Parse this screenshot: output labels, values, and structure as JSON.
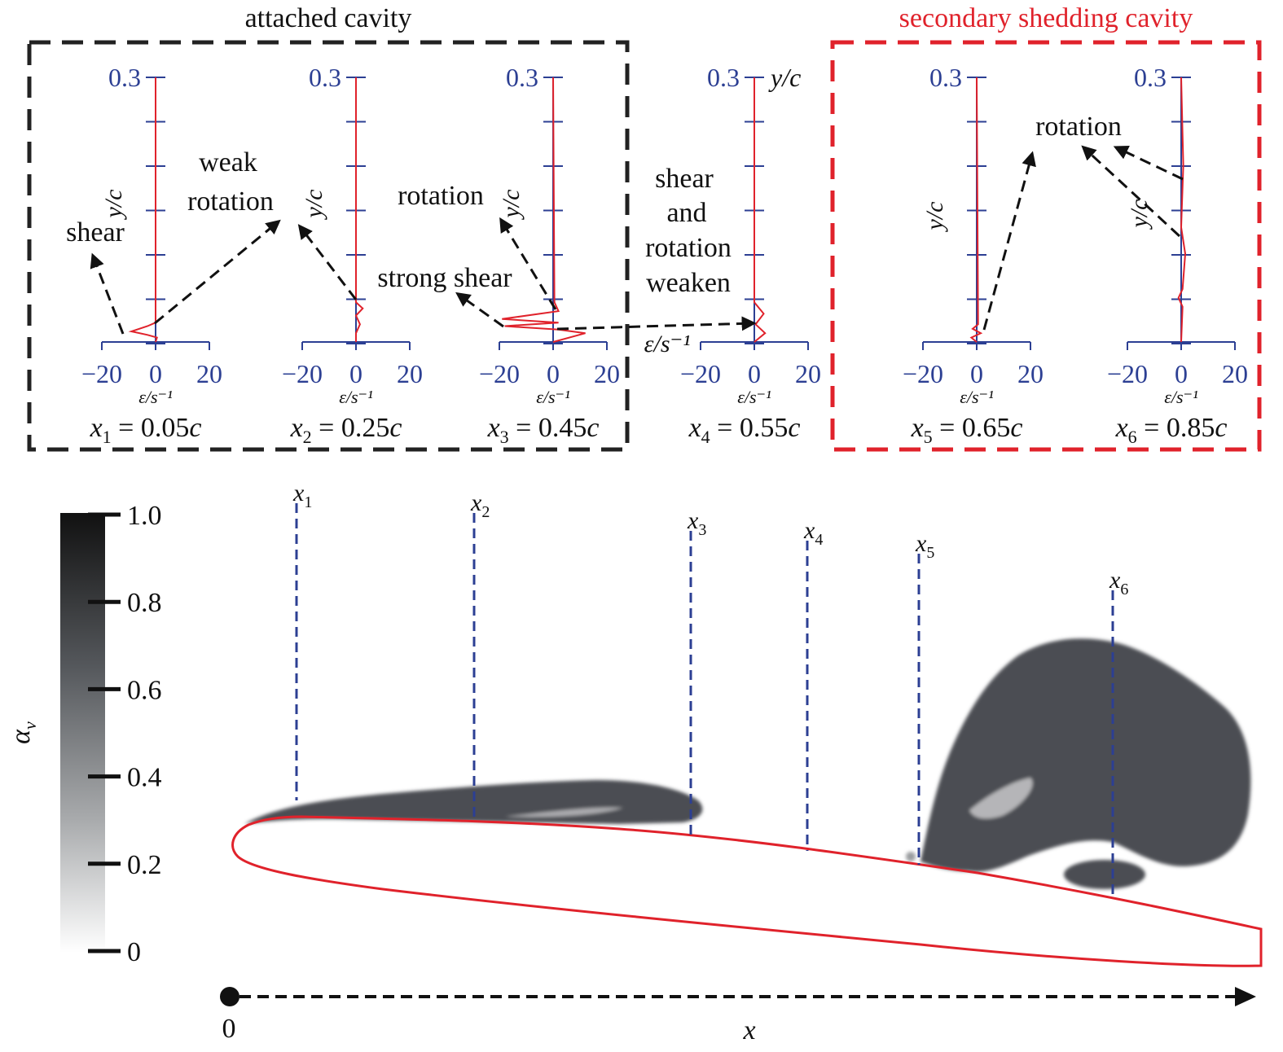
{
  "group_labels": {
    "attached": "attached cavity",
    "secondary": "secondary shedding cavity"
  },
  "colors": {
    "axis_blue": "#2c3f93",
    "profile_red": "#e0222b",
    "attached_box": "#222222",
    "secondary_box": "#e0222b",
    "cavity_dark": "#4b4e53",
    "probe_blue": "#2c3f93"
  },
  "panels": [
    {
      "id": "x1",
      "station_name": "x",
      "station_sub": "1",
      "station_value": " = 0.05",
      "station_unit": "c",
      "y_top": "0.3",
      "ylabel": "y/c",
      "xticks": [
        "−20",
        "0",
        "20"
      ],
      "xlabel": "ε/s⁻¹",
      "profile": [
        [
          0,
          0
        ],
        [
          0.5,
          0.005
        ],
        [
          -3,
          0.008
        ],
        [
          -9,
          0.012
        ],
        [
          -3,
          0.018
        ],
        [
          0,
          0.022
        ],
        [
          0,
          0.3
        ]
      ]
    },
    {
      "id": "x2",
      "station_name": "x",
      "station_sub": "2",
      "station_value": " = 0.25",
      "station_unit": "c",
      "y_top": "0.3",
      "ylabel": "y/c",
      "xticks": [
        "−20",
        "0",
        "20"
      ],
      "xlabel": "ε/s⁻¹",
      "profile": [
        [
          0,
          0
        ],
        [
          0,
          0.01
        ],
        [
          1.5,
          0.02
        ],
        [
          0,
          0.03
        ],
        [
          2.5,
          0.038
        ],
        [
          0,
          0.045
        ],
        [
          0,
          0.3
        ]
      ]
    },
    {
      "id": "x3",
      "station_name": "x",
      "station_sub": "3",
      "station_value": " = 0.45",
      "station_unit": "c",
      "y_top": "0.3",
      "ylabel": "y/c",
      "xticks": [
        "−20",
        "0",
        "20"
      ],
      "xlabel": "ε/s⁻¹",
      "profile": [
        [
          0,
          0
        ],
        [
          12,
          0.01
        ],
        [
          2,
          0.014
        ],
        [
          -18,
          0.018
        ],
        [
          2,
          0.022
        ],
        [
          -19,
          0.026
        ],
        [
          2,
          0.035
        ],
        [
          0.5,
          0.045
        ],
        [
          0,
          0.3
        ]
      ]
    },
    {
      "id": "x4",
      "station_name": "x",
      "station_sub": "4",
      "station_value": " = 0.55",
      "station_unit": "c",
      "y_top": "0.3",
      "ylabel": "y/c",
      "xticks": [
        "−20",
        "0",
        "20"
      ],
      "xlabel": "ε/s⁻¹",
      "profile": [
        [
          0,
          0
        ],
        [
          4,
          0.01
        ],
        [
          0.5,
          0.02
        ],
        [
          3.5,
          0.032
        ],
        [
          0,
          0.045
        ],
        [
          0,
          0.3
        ]
      ]
    },
    {
      "id": "x5",
      "station_name": "x",
      "station_sub": "5",
      "station_value": " = 0.65",
      "station_unit": "c",
      "y_top": "0.3",
      "ylabel": "y/c",
      "xticks": [
        "−20",
        "0",
        "20"
      ],
      "xlabel": "ε/s⁻¹",
      "profile": [
        [
          0,
          0
        ],
        [
          -2,
          0.005
        ],
        [
          1.5,
          0.01
        ],
        [
          -1.5,
          0.015
        ],
        [
          0.5,
          0.02
        ],
        [
          0,
          0.3
        ]
      ]
    },
    {
      "id": "x6",
      "station_name": "x",
      "station_sub": "6",
      "station_value": " = 0.85",
      "station_unit": "c",
      "y_top": "0.3",
      "ylabel": "y/c",
      "xticks": [
        "−20",
        "0",
        "20"
      ],
      "xlabel": "ε/s⁻¹",
      "profile": [
        [
          0,
          0
        ],
        [
          0.5,
          0.04
        ],
        [
          -1,
          0.05
        ],
        [
          0.5,
          0.06
        ],
        [
          1.5,
          0.1
        ],
        [
          0,
          0.13
        ],
        [
          0.8,
          0.2
        ],
        [
          0,
          0.3
        ]
      ]
    }
  ],
  "y4_axis_label": "y/c",
  "annotations": {
    "shear": "shear",
    "weak": "weak",
    "rotation_a": "rotation",
    "rotation_b": "rotation",
    "strong_shear": "strong shear",
    "shear_and": "shear",
    "and": "and",
    "rotation_c": "rotation",
    "weaken": "weaken",
    "rotation_d": "rotation",
    "eps_mid": "ε/s⁻¹"
  },
  "colorbar": {
    "label": "α",
    "label_sub": "v",
    "ticks": [
      "1.0",
      "0.8",
      "0.6",
      "0.4",
      "0.2",
      "0"
    ]
  },
  "probes": [
    {
      "name": "x",
      "sub": "1"
    },
    {
      "name": "x",
      "sub": "2"
    },
    {
      "name": "x",
      "sub": "3"
    },
    {
      "name": "x",
      "sub": "4"
    },
    {
      "name": "x",
      "sub": "5"
    },
    {
      "name": "x",
      "sub": "6"
    }
  ],
  "x_axis": {
    "origin": "0",
    "label": "x"
  }
}
